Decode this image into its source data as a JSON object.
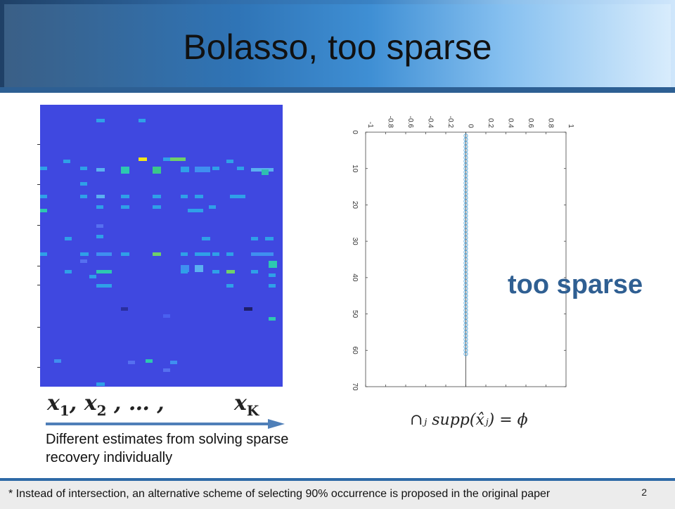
{
  "title": "Bolasso, too sparse",
  "x_labels": {
    "first": "x",
    "sub1": "1",
    "sep1": ", ",
    "second": "x",
    "sub2": "2",
    "dots": "  , … ,",
    "last": "x",
    "subk": "K"
  },
  "caption": "Different estimates from solving sparse recovery individually",
  "annotation": "too sparse",
  "formula": "∩ⱼ supp(x̂ⱼ) = ϕ",
  "footnote": "* Instead of intersection, an alternative scheme of selecting 90% occurrence is proposed in the original paper",
  "page_number": "2",
  "colors": {
    "heatmap_bg": "#3f48e0",
    "accent": "#2f5f92",
    "marker": "#4fa3d8"
  },
  "chart_data": {
    "type": "scatter",
    "orientation": "rotated",
    "x_ticks": [
      "-1",
      "-0.8",
      "-0.6",
      "-0.4",
      "-0.2",
      "0",
      "0.2",
      "0.4",
      "0.6",
      "0.8",
      "1"
    ],
    "y_ticks": [
      "0",
      "10",
      "20",
      "30",
      "40",
      "50",
      "60",
      "70"
    ],
    "xlim": [
      -1,
      1
    ],
    "ylim": [
      0,
      70
    ],
    "points": {
      "value": 0,
      "index_from": 1,
      "index_to": 61
    }
  }
}
